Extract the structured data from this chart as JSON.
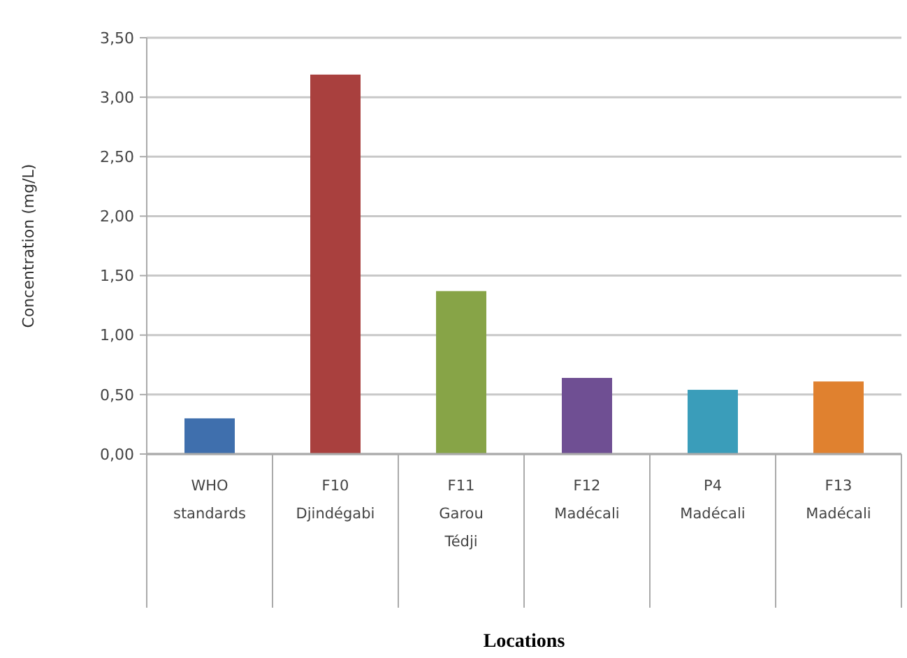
{
  "chart_data": {
    "type": "bar",
    "xlabel": "Locations",
    "ylabel": "Concentration (mg/L)",
    "categories": [
      "WHO\nstandards",
      "F10\nDjindégabi",
      "F11\nGarou\nTédji",
      "F12\nMadécali",
      "P4\nMadécali",
      "F13\nMadécali"
    ],
    "values": [
      0.3,
      3.19,
      1.37,
      0.64,
      0.54,
      0.61
    ],
    "colors": [
      "#3f6fad",
      "#a9403e",
      "#87a447",
      "#6f4f93",
      "#3a9dba",
      "#e0812f"
    ],
    "ylim": [
      0,
      3.5
    ],
    "yticks": [
      {
        "value": 0,
        "label": "0,00"
      },
      {
        "value": 0.5,
        "label": "0,50"
      },
      {
        "value": 1,
        "label": "1,00"
      },
      {
        "value": 1.5,
        "label": "1,50"
      },
      {
        "value": 2,
        "label": "2,00"
      },
      {
        "value": 2.5,
        "label": "2,50"
      },
      {
        "value": 3,
        "label": "3,00"
      },
      {
        "value": 3.5,
        "label": "3,50"
      }
    ],
    "grid": "y"
  }
}
